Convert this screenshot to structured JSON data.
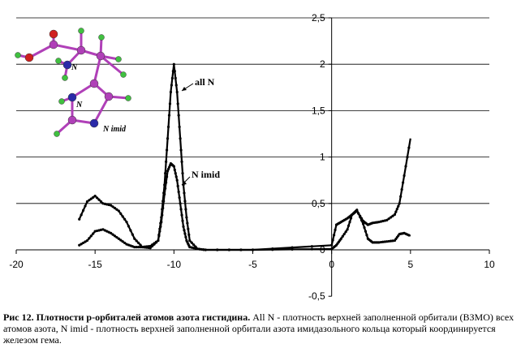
{
  "chart_data": {
    "type": "line",
    "xlim": [
      -20,
      10
    ],
    "ylim": [
      -0.5,
      2.5
    ],
    "x_ticks": [
      "-20",
      "-15",
      "-10",
      "-5",
      "0",
      "5",
      "10"
    ],
    "y_ticks": [
      "-0,5",
      "0",
      "0,5",
      "1",
      "1,5",
      "2",
      "2,5"
    ],
    "gridlines": "horizontal",
    "annotations": [
      "all N",
      "N imid"
    ],
    "series": [
      {
        "name": "all N",
        "x": [
          -16,
          -15.5,
          -15,
          -14.5,
          -14,
          -13.5,
          -13,
          -12.5,
          -12,
          -11.5,
          -11,
          -10.8,
          -10.6,
          -10.4,
          -10.2,
          -10,
          -9.8,
          -9.6,
          -9.4,
          -9.2,
          -9,
          -8.5,
          -8,
          -5,
          0,
          0.3,
          0.6,
          1,
          1.3,
          1.6,
          2,
          2.3,
          2.6,
          3,
          3.5,
          4,
          4.3,
          4.6,
          5
        ],
        "y": [
          0.33,
          0.52,
          0.58,
          0.5,
          0.48,
          0.42,
          0.3,
          0.12,
          0.03,
          0.02,
          0.1,
          0.35,
          0.7,
          1.2,
          1.7,
          2.0,
          1.7,
          1.2,
          0.7,
          0.35,
          0.1,
          0.01,
          0.0,
          0.0,
          0.05,
          0.27,
          0.3,
          0.34,
          0.38,
          0.42,
          0.31,
          0.27,
          0.29,
          0.3,
          0.32,
          0.38,
          0.5,
          0.8,
          1.2
        ]
      },
      {
        "name": "N imid",
        "x": [
          -16,
          -15.5,
          -15,
          -14.5,
          -14,
          -13.5,
          -13,
          -12.5,
          -12,
          -11.5,
          -11,
          -10.8,
          -10.6,
          -10.4,
          -10.2,
          -10,
          -9.8,
          -9.6,
          -9.4,
          -9.2,
          -9,
          -8.5,
          -8,
          -5,
          0,
          0.3,
          0.6,
          1,
          1.3,
          1.6,
          2,
          2.3,
          2.6,
          3,
          3.5,
          4,
          4.3,
          4.6,
          5
        ],
        "y": [
          0.05,
          0.1,
          0.2,
          0.22,
          0.18,
          0.12,
          0.06,
          0.03,
          0.03,
          0.04,
          0.1,
          0.3,
          0.6,
          0.85,
          0.93,
          0.9,
          0.75,
          0.5,
          0.25,
          0.1,
          0.03,
          0.01,
          0.0,
          0.0,
          0.01,
          0.05,
          0.12,
          0.22,
          0.38,
          0.43,
          0.28,
          0.12,
          0.08,
          0.08,
          0.09,
          0.1,
          0.17,
          0.18,
          0.15
        ]
      }
    ]
  },
  "molecule": {
    "labels": [
      "N",
      "N",
      "N imid"
    ],
    "colors": {
      "carbon": "#b040b8",
      "nitrogen": "#2a2aa8",
      "oxygen": "#d02020",
      "hydrogen": "#40c040",
      "bond": "#b040b8"
    }
  },
  "caption": {
    "lead": "Рис 12. Плотности p-орбиталей атомов азота гистидина.",
    "body": " All N - плотность верхней заполненной орбитали (ВЗМО) всех атомов азота, N imid - плотность верхней заполненной орбитали азота имидазольного кольца который координируется железом гема."
  }
}
